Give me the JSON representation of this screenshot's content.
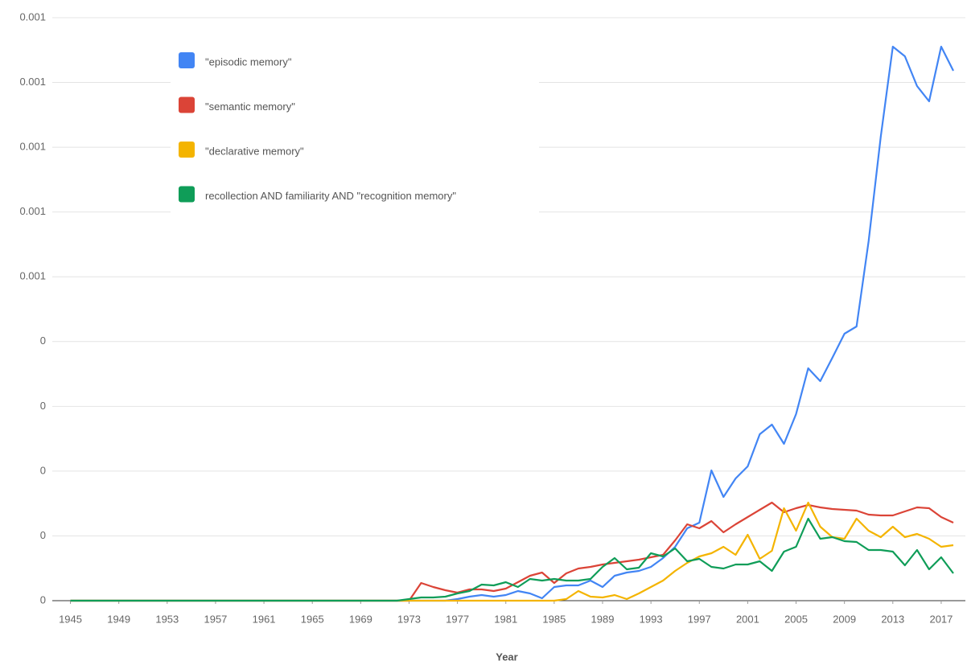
{
  "chart_data": {
    "type": "line",
    "x_label": "Year",
    "x": [
      1945,
      1946,
      1947,
      1948,
      1949,
      1950,
      1951,
      1952,
      1953,
      1954,
      1955,
      1956,
      1957,
      1958,
      1959,
      1960,
      1961,
      1962,
      1963,
      1964,
      1965,
      1966,
      1967,
      1968,
      1969,
      1970,
      1971,
      1972,
      1973,
      1974,
      1975,
      1976,
      1977,
      1978,
      1979,
      1980,
      1981,
      1982,
      1983,
      1984,
      1985,
      1986,
      1987,
      1988,
      1989,
      1990,
      1991,
      1992,
      1993,
      1994,
      1995,
      1996,
      1997,
      1998,
      1999,
      2000,
      2001,
      2002,
      2003,
      2004,
      2005,
      2006,
      2007,
      2008,
      2009,
      2010,
      2011,
      2012,
      2013,
      2014,
      2015,
      2016,
      2017,
      2018
    ],
    "series": [
      {
        "name": "\"episodic memory\"",
        "color": "#4285f4",
        "values": [
          0,
          0,
          0,
          0,
          0,
          0,
          0,
          0,
          0,
          0,
          0,
          0,
          0,
          0,
          0,
          0,
          0,
          0,
          0,
          0,
          0,
          0,
          0,
          0,
          0,
          0,
          0,
          0,
          0,
          0,
          0,
          0,
          2.5e-06,
          6.2e-06,
          8.7e-06,
          6.2e-06,
          8.7e-06,
          1.49e-05,
          1.12e-05,
          3.7e-06,
          2.11e-05,
          2.36e-05,
          2.36e-05,
          3.1e-05,
          2.11e-05,
          3.85e-05,
          4.34e-05,
          4.59e-05,
          5.21e-05,
          6.58e-05,
          8.32e-05,
          0.0001117,
          0.0001204,
          0.0002011,
          0.0001601,
          0.0001887,
          0.0002073,
          0.000257,
          0.0002719,
          0.0002421,
          0.000288,
          0.0003588,
          0.0003389,
          0.0003749,
          0.0004121,
          0.0004233,
          0.0005549,
          0.0007163,
          0.0008553,
          0.0008404,
          0.0007945,
          0.0007709,
          0.0008553,
          0.0008181
        ]
      },
      {
        "name": "\"semantic memory\"",
        "color": "#db4437",
        "values": [
          0,
          0,
          0,
          0,
          0,
          0,
          0,
          0,
          0,
          0,
          0,
          0,
          0,
          0,
          0,
          0,
          0,
          0,
          0,
          0,
          0,
          0,
          0,
          0,
          0,
          0,
          0,
          0,
          0,
          2.73e-05,
          2.11e-05,
          1.61e-05,
          1.24e-05,
          1.74e-05,
          1.74e-05,
          1.49e-05,
          1.86e-05,
          2.86e-05,
          3.85e-05,
          4.34e-05,
          2.73e-05,
          4.22e-05,
          4.97e-05,
          5.21e-05,
          5.59e-05,
          5.83e-05,
          6.08e-05,
          6.33e-05,
          6.7e-05,
          7.08e-05,
          9.31e-05,
          0.0001179,
          0.0001117,
          0.0001229,
          0.0001055,
          0.0001179,
          0.0001291,
          0.0001403,
          0.0001514,
          0.0001366,
          0.0001428,
          0.0001477,
          0.000144,
          0.0001415,
          0.0001403,
          0.000139,
          0.0001328,
          0.0001316,
          0.0001316,
          0.0001378,
          0.000144,
          0.0001428,
          0.0001291,
          0.0001204
        ]
      },
      {
        "name": "\"declarative memory\"",
        "color": "#f4b400",
        "values": [
          0,
          0,
          0,
          0,
          0,
          0,
          0,
          0,
          0,
          0,
          0,
          0,
          0,
          0,
          0,
          0,
          0,
          0,
          0,
          0,
          0,
          0,
          0,
          0,
          0,
          0,
          0,
          0,
          0,
          0,
          0,
          0,
          0,
          0,
          0,
          0,
          0,
          0,
          0,
          0,
          0,
          2.5e-06,
          1.49e-05,
          6.2e-06,
          5e-06,
          8.7e-06,
          2.5e-06,
          1.12e-05,
          2.11e-05,
          3.1e-05,
          4.59e-05,
          5.83e-05,
          6.83e-05,
          7.32e-05,
          8.32e-05,
          7.08e-05,
          0.0001018,
          6.46e-05,
          7.7e-05,
          0.0001428,
          0.000108,
          0.0001514,
          0.0001142,
          9.81e-05,
          9.56e-05,
          0.0001266,
          0.000108,
          9.81e-05,
          0.0001142,
          9.81e-05,
          0.000103,
          9.56e-05,
          8.32e-05,
          8.57e-05
        ]
      },
      {
        "name": "recollection AND familiarity AND \"recognition memory\"",
        "color": "#0f9d58",
        "values": [
          0,
          0,
          0,
          0,
          0,
          0,
          0,
          0,
          0,
          0,
          0,
          0,
          0,
          0,
          0,
          0,
          0,
          0,
          0,
          0,
          0,
          0,
          0,
          0,
          0,
          0,
          0,
          0,
          2.5e-06,
          5e-06,
          5e-06,
          6.2e-06,
          1.12e-05,
          1.49e-05,
          2.48e-05,
          2.36e-05,
          2.86e-05,
          2.11e-05,
          3.35e-05,
          3.1e-05,
          3.35e-05,
          3.1e-05,
          3.1e-05,
          3.35e-05,
          5.21e-05,
          6.58e-05,
          4.84e-05,
          5.09e-05,
          7.32e-05,
          6.83e-05,
          8.07e-05,
          6.08e-05,
          6.46e-05,
          5.21e-05,
          4.97e-05,
          5.59e-05,
          5.59e-05,
          6.08e-05,
          4.59e-05,
          7.57e-05,
          8.32e-05,
          0.0001266,
          9.56e-05,
          9.81e-05,
          9.19e-05,
          9.06e-05,
          7.82e-05,
          7.82e-05,
          7.57e-05,
          5.46e-05,
          7.82e-05,
          4.84e-05,
          6.7e-05,
          4.22e-05
        ]
      }
    ],
    "xlim": [
      1943.5,
      2019
    ],
    "xticks": [
      1945,
      1949,
      1953,
      1957,
      1961,
      1965,
      1969,
      1973,
      1977,
      1981,
      1985,
      1989,
      1993,
      1997,
      2001,
      2005,
      2009,
      2013,
      2017
    ],
    "ylim": [
      0,
      0.0009
    ],
    "yticks": [
      0,
      {
        "value": 0.0001,
        "label": "0"
      },
      {
        "value": 0.0002,
        "label": "0"
      },
      {
        "value": 0.0003,
        "label": "0"
      },
      {
        "value": 0.0004,
        "label": "0"
      },
      {
        "value": 0.0005,
        "label": "0.001"
      },
      {
        "value": 0.0006,
        "label": "0.001"
      },
      {
        "value": 0.0007,
        "label": "0.001"
      },
      {
        "value": 0.0008,
        "label": "0.001"
      },
      {
        "value": 0.0009,
        "label": "0.001"
      }
    ],
    "grid": true,
    "legend": "top-left"
  }
}
